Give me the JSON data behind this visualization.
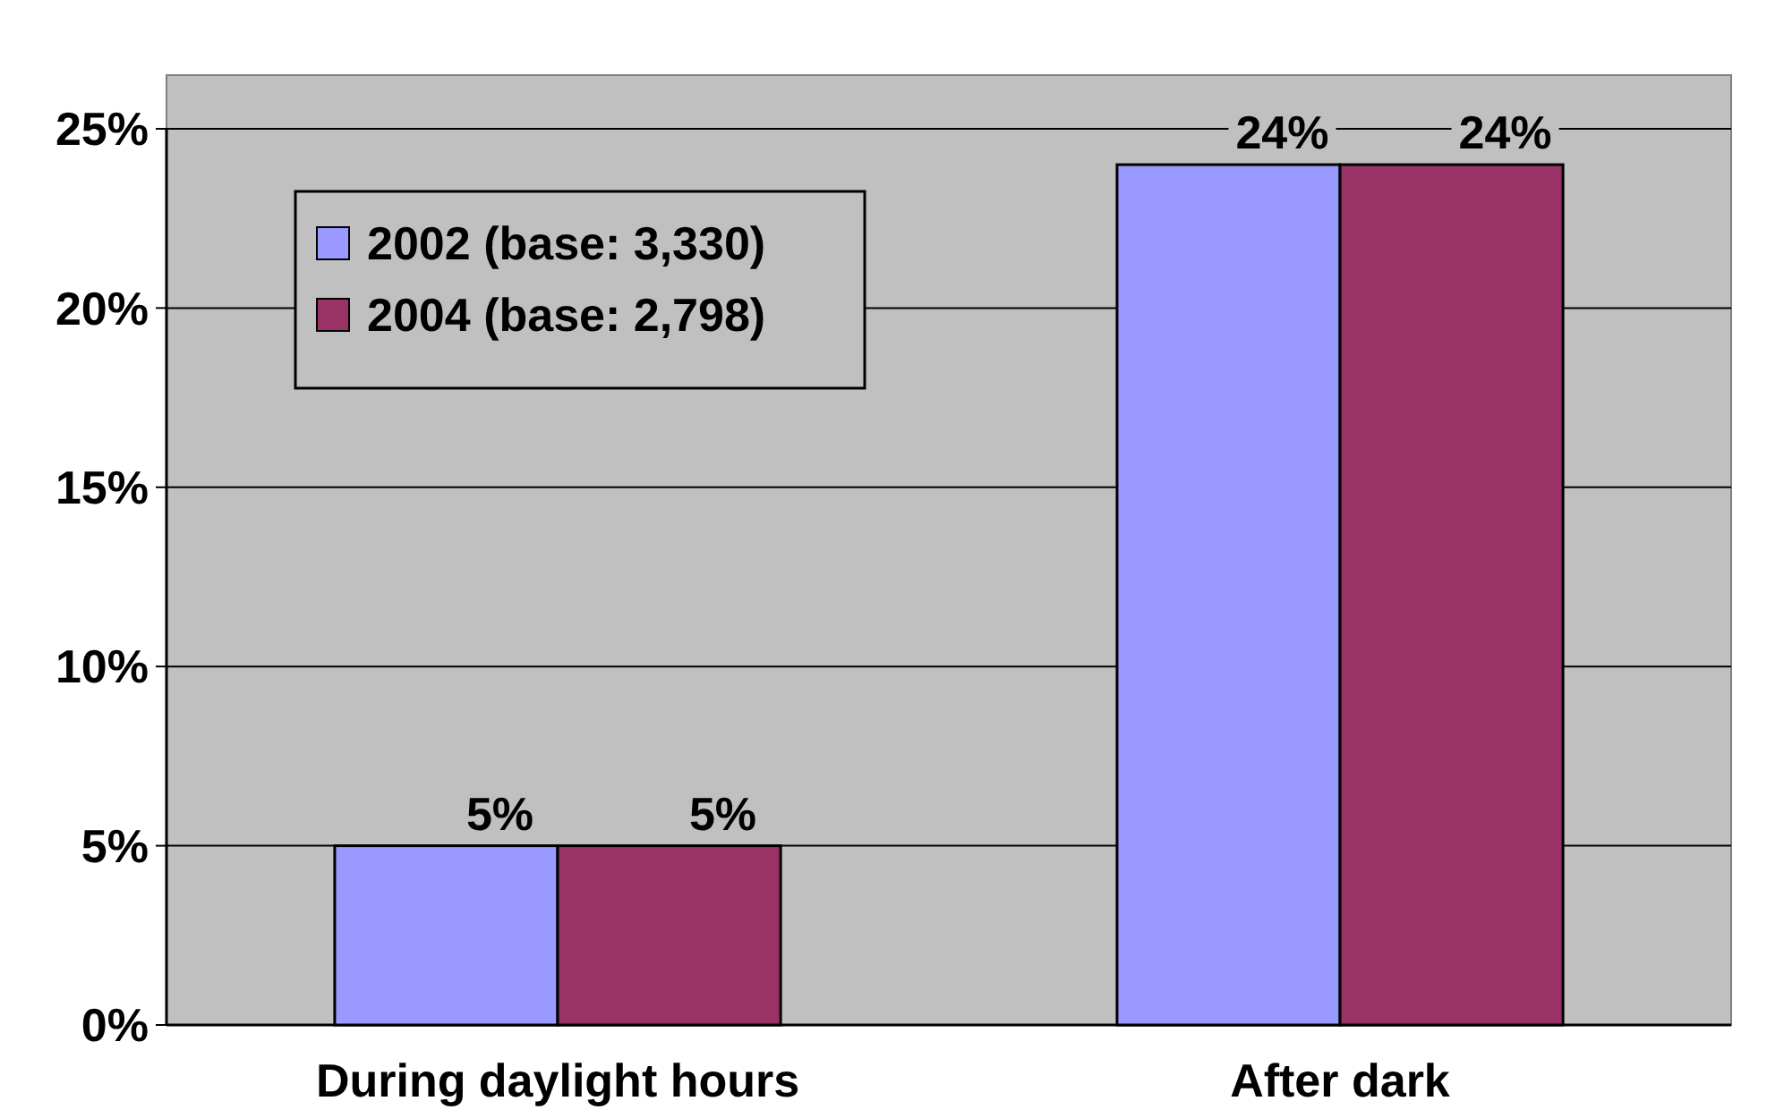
{
  "chart_data": {
    "type": "bar",
    "categories": [
      "During daylight hours",
      "After dark"
    ],
    "series": [
      {
        "name": "2002 (base: 3,330)",
        "color": "#9999ff",
        "values": [
          5,
          24
        ],
        "value_labels": [
          "5%",
          "24%"
        ]
      },
      {
        "name": "2004 (base: 2,798)",
        "color": "#993366",
        "values": [
          5,
          24
        ],
        "value_labels": [
          "5%",
          "24%"
        ]
      }
    ],
    "ylim": [
      0,
      25
    ],
    "yticks": [
      {
        "value": 0,
        "label": "0%"
      },
      {
        "value": 5,
        "label": "5%"
      },
      {
        "value": 10,
        "label": "10%"
      },
      {
        "value": 15,
        "label": "15%"
      },
      {
        "value": 20,
        "label": "20%"
      },
      {
        "value": 25,
        "label": "25%"
      }
    ],
    "grid": "y",
    "legend": "top left"
  }
}
